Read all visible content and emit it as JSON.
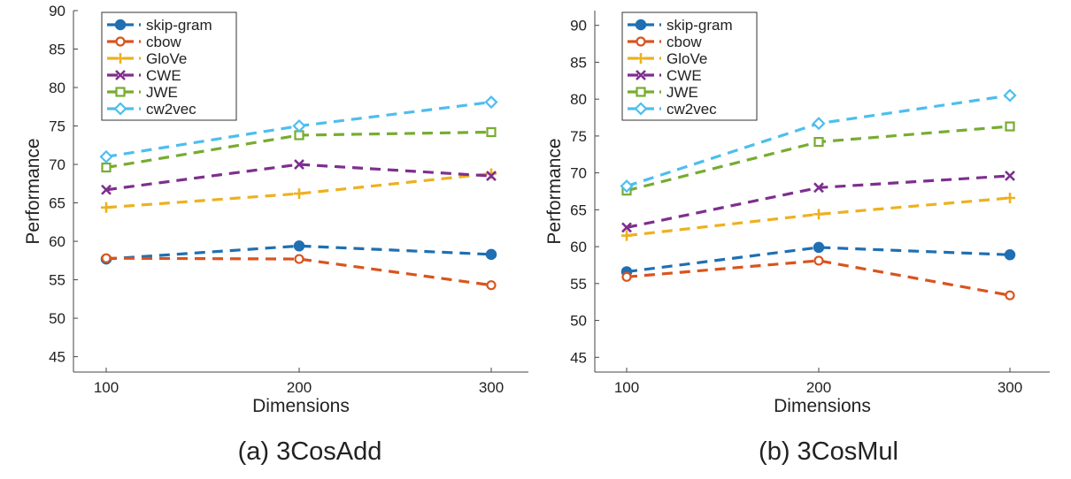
{
  "chart_data": [
    {
      "type": "line",
      "caption": "(a) 3CosAdd",
      "xlabel": "Dimensions",
      "ylabel": "Performance",
      "x": [
        100,
        200,
        300
      ],
      "x_ticks": [
        "100",
        "200",
        "300"
      ],
      "ylim": [
        43,
        90
      ],
      "y_ticks": [
        "45",
        "50",
        "55",
        "60",
        "65",
        "70",
        "75",
        "80",
        "85",
        "90"
      ],
      "legend_position": "top-left",
      "grid": false,
      "series": [
        {
          "name": "skip-gram",
          "color": "#1f6fb2",
          "marker": "filled-circle",
          "values": [
            57.7,
            59.4,
            58.3
          ]
        },
        {
          "name": "cbow",
          "color": "#d9541e",
          "marker": "open-circle",
          "values": [
            57.8,
            57.7,
            54.3
          ]
        },
        {
          "name": "GloVe",
          "color": "#edb120",
          "marker": "plus",
          "values": [
            64.4,
            66.2,
            68.8
          ]
        },
        {
          "name": "CWE",
          "color": "#7e2f8e",
          "marker": "x",
          "values": [
            66.7,
            70.0,
            68.5
          ]
        },
        {
          "name": "JWE",
          "color": "#77ac30",
          "marker": "square",
          "values": [
            69.6,
            73.8,
            74.2
          ]
        },
        {
          "name": "cw2vec",
          "color": "#4dbeee",
          "marker": "diamond",
          "values": [
            71.0,
            75.0,
            78.1
          ]
        }
      ]
    },
    {
      "type": "line",
      "caption": "(b) 3CosMul",
      "xlabel": "Dimensions",
      "ylabel": "Performance",
      "x": [
        100,
        200,
        300
      ],
      "x_ticks": [
        "100",
        "200",
        "300"
      ],
      "ylim": [
        43,
        92
      ],
      "y_ticks": [
        "45",
        "50",
        "55",
        "60",
        "65",
        "70",
        "75",
        "80",
        "85",
        "90"
      ],
      "legend_position": "top-left",
      "grid": false,
      "series": [
        {
          "name": "skip-gram",
          "color": "#1f6fb2",
          "marker": "filled-circle",
          "values": [
            56.6,
            59.9,
            58.9
          ]
        },
        {
          "name": "cbow",
          "color": "#d9541e",
          "marker": "open-circle",
          "values": [
            55.9,
            58.1,
            53.4
          ]
        },
        {
          "name": "GloVe",
          "color": "#edb120",
          "marker": "plus",
          "values": [
            61.5,
            64.4,
            66.6
          ]
        },
        {
          "name": "CWE",
          "color": "#7e2f8e",
          "marker": "x",
          "values": [
            62.6,
            68.0,
            69.6
          ]
        },
        {
          "name": "JWE",
          "color": "#77ac30",
          "marker": "square",
          "values": [
            67.6,
            74.2,
            76.3
          ]
        },
        {
          "name": "cw2vec",
          "color": "#4dbeee",
          "marker": "diamond",
          "values": [
            68.2,
            76.7,
            80.5
          ]
        }
      ]
    }
  ]
}
